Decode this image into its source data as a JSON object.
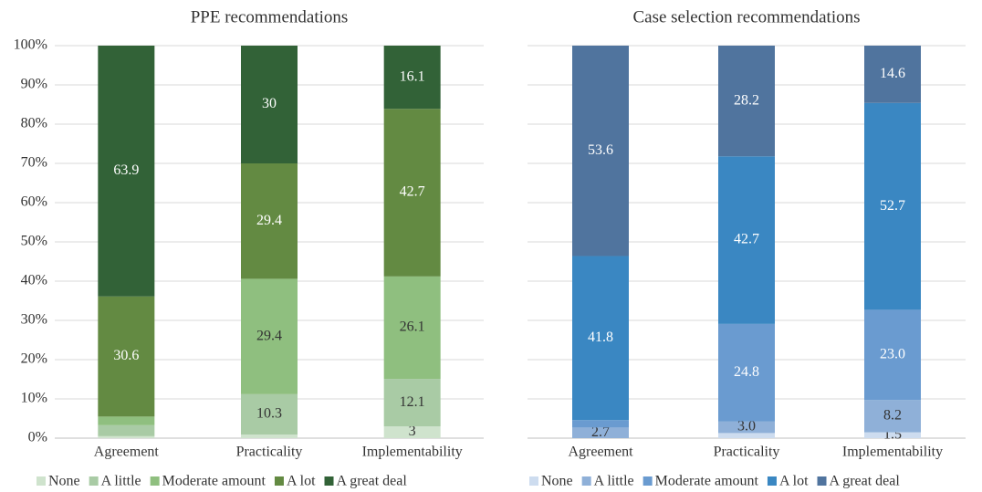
{
  "chart_data": [
    {
      "type": "bar",
      "stacked": true,
      "title": "PPE recommendations",
      "categories": [
        "Agreement",
        "Practicality",
        "Implementability"
      ],
      "ylim": [
        0,
        100
      ],
      "yticks": [
        {
          "value": 0,
          "label": "0%"
        },
        {
          "value": 10,
          "label": "10%"
        },
        {
          "value": 20,
          "label": "20%"
        },
        {
          "value": 30,
          "label": "30%"
        },
        {
          "value": 40,
          "label": "40%"
        },
        {
          "value": 50,
          "label": "50%"
        },
        {
          "value": 60,
          "label": "60%"
        },
        {
          "value": 70,
          "label": "70%"
        },
        {
          "value": 80,
          "label": "80%"
        },
        {
          "value": 90,
          "label": "90%"
        },
        {
          "value": 100,
          "label": "100%"
        }
      ],
      "grid": true,
      "series": [
        {
          "name": "None",
          "color": "#cfe3cd",
          "label_color": "#333",
          "values": [
            0.5,
            0.9,
            3
          ],
          "value_labels": [
            null,
            null,
            "3"
          ]
        },
        {
          "name": "A little",
          "color": "#a9cba5",
          "label_color": "#333",
          "values": [
            2.8,
            10.3,
            12.1
          ],
          "value_labels": [
            null,
            "10.3",
            "12.1"
          ]
        },
        {
          "name": "Moderate amount",
          "color": "#8fbf7f",
          "label_color": "#333",
          "values": [
            2.2,
            29.4,
            26.1
          ],
          "value_labels": [
            null,
            "29.4",
            "26.1"
          ]
        },
        {
          "name": "A lot",
          "color": "#638a42",
          "label_color": "#fff",
          "values": [
            30.6,
            29.4,
            42.7
          ],
          "value_labels": [
            "30.6",
            "29.4",
            "42.7"
          ]
        },
        {
          "name": "A great deal",
          "color": "#326237",
          "label_color": "#fff",
          "values": [
            63.9,
            30,
            16.1
          ],
          "value_labels": [
            "63.9",
            "30",
            "16.1"
          ]
        }
      ]
    },
    {
      "type": "bar",
      "stacked": true,
      "title": "Case selection recommendations",
      "categories": [
        "Agreement",
        "Practicality",
        "Implementability"
      ],
      "ylim": [
        0,
        100
      ],
      "yticks": [
        0,
        10,
        20,
        30,
        40,
        50,
        60,
        70,
        80,
        90,
        100
      ],
      "grid": true,
      "series": [
        {
          "name": "None",
          "color": "#cddcef",
          "label_color": "#333",
          "values": [
            0,
            1.3,
            1.5
          ],
          "value_labels": [
            null,
            null,
            "1.5"
          ]
        },
        {
          "name": "A little",
          "color": "#8fb0d8",
          "label_color": "#333",
          "values": [
            2.7,
            3.0,
            8.2
          ],
          "value_labels": [
            "2.7",
            "3.0",
            "8.2"
          ]
        },
        {
          "name": "Moderate amount",
          "color": "#6a9bd0",
          "label_color": "#fff",
          "values": [
            1.9,
            24.8,
            23.0
          ],
          "value_labels": [
            null,
            "24.8",
            "23.0"
          ]
        },
        {
          "name": "A lot",
          "color": "#3a87c2",
          "label_color": "#fff",
          "values": [
            41.8,
            42.7,
            52.7
          ],
          "value_labels": [
            "41.8",
            "42.7",
            "52.7"
          ]
        },
        {
          "name": "A great deal",
          "color": "#50749e",
          "label_color": "#fff",
          "values": [
            53.6,
            28.2,
            14.6
          ],
          "value_labels": [
            "53.6",
            "28.2",
            "14.6"
          ]
        }
      ]
    }
  ]
}
